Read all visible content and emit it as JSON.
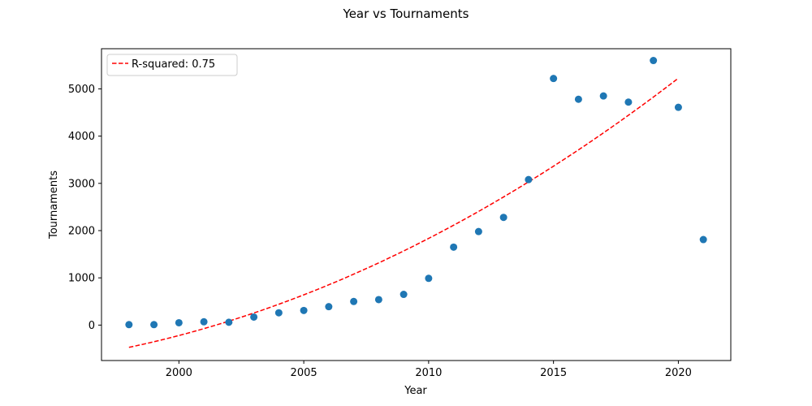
{
  "chart_data": {
    "type": "scatter",
    "title": "Year vs Tournaments",
    "xlabel": "Year",
    "ylabel": "Tournaments",
    "xlim": [
      1996.9,
      2022.1
    ],
    "ylim": [
      -750,
      5850
    ],
    "xticks": [
      2000,
      2005,
      2010,
      2015,
      2020
    ],
    "yticks": [
      0,
      1000,
      2000,
      3000,
      4000,
      5000
    ],
    "grid": false,
    "legend_position": "top-left",
    "points": {
      "color": "#1f77b4",
      "x": [
        1998,
        1999,
        2000,
        2001,
        2002,
        2003,
        2004,
        2005,
        2006,
        2007,
        2008,
        2009,
        2010,
        2011,
        2012,
        2013,
        2014,
        2015,
        2016,
        2017,
        2018,
        2019,
        2020,
        2021
      ],
      "y": [
        10,
        10,
        50,
        70,
        60,
        170,
        260,
        310,
        390,
        500,
        540,
        650,
        990,
        1650,
        1980,
        2280,
        3080,
        5220,
        4780,
        4850,
        4720,
        5600,
        4610,
        1810
      ]
    },
    "fit": {
      "name": "R-squared: 0.75",
      "color": "#ff0000",
      "style": "dashed",
      "x_start": 1998,
      "x_end": 2020,
      "coefficients": [
        -471,
        112,
        6.68
      ]
    }
  }
}
